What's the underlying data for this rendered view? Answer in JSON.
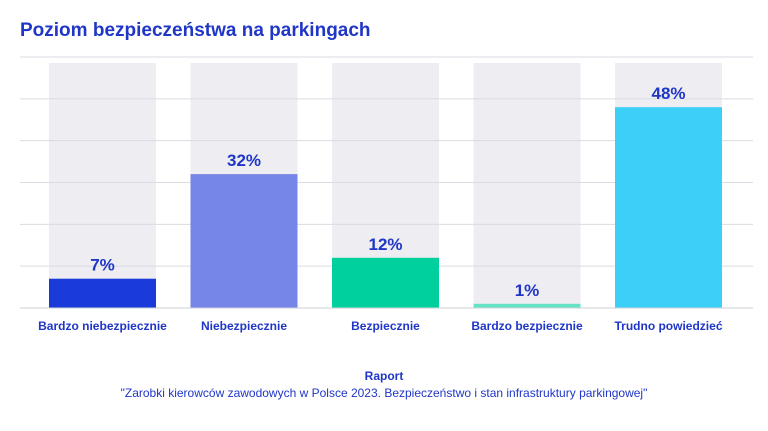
{
  "chart_data": {
    "type": "bar",
    "title": "Poziom bezpieczeństwa na parkingach",
    "categories": [
      "Bardzo niebezpiecznie",
      "Niebezpiecznie",
      "Bezpiecznie",
      "Bardzo bezpiecznie",
      "Trudno powiedzieć"
    ],
    "values": [
      7,
      32,
      12,
      1,
      48
    ],
    "value_labels": [
      "7%",
      "32%",
      "12%",
      "1%",
      "48%"
    ],
    "colors": [
      "#1a3bd9",
      "#7585e8",
      "#00cf9e",
      "#66e3c4",
      "#3ccff7"
    ],
    "background_bar_color": "#ededf2",
    "ylim": [
      0,
      60
    ],
    "grid": true,
    "xlabel": "",
    "ylabel": ""
  },
  "footer": {
    "title": "Raport",
    "subtitle": "\"Zarobki kierowców zawodowych w Polsce 2023. Bezpieczeństwo i stan infrastruktury parkingowej\""
  }
}
